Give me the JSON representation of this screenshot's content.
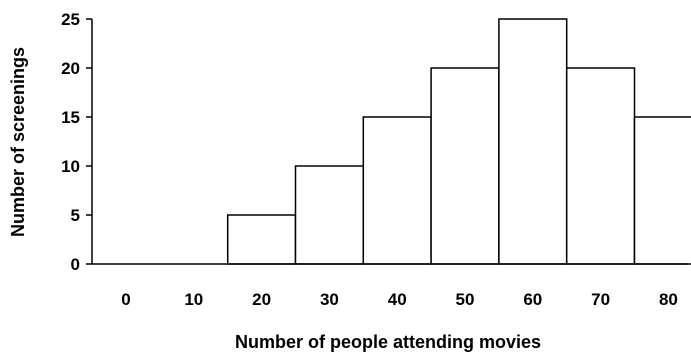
{
  "chart_data": {
    "type": "bar",
    "title": "",
    "xlabel": "Number of people attending movies",
    "ylabel": "Number of screenings",
    "categories": [
      "0",
      "10",
      "20",
      "30",
      "40",
      "50",
      "60",
      "70",
      "80"
    ],
    "values": [
      0,
      0,
      5,
      10,
      15,
      20,
      25,
      20,
      15
    ],
    "ylim": [
      0,
      25
    ],
    "yticks": [
      "0",
      "5",
      "10",
      "15",
      "20",
      "25"
    ],
    "grid": false,
    "bar_fill": "#ffffff",
    "bar_stroke": "#000000"
  }
}
